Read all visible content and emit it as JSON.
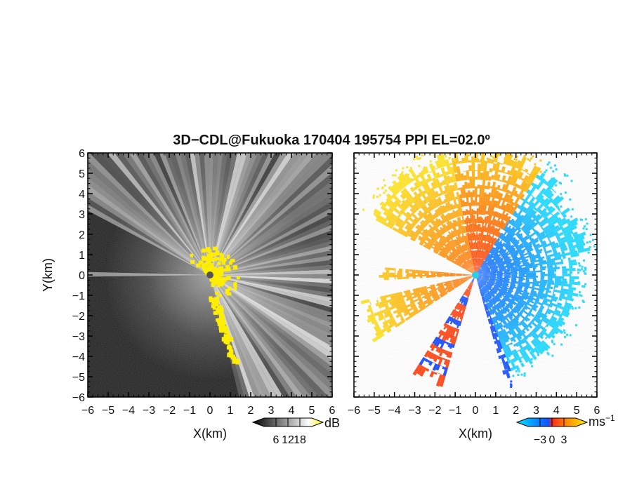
{
  "title": "3D−CDL@Fukuoka 170404 195754 PPI EL=02.0º",
  "chart_data": [
    {
      "name": "reflectivity",
      "type": "heatmap",
      "xlabel": "X(km)",
      "ylabel": "Y(km)",
      "xlim": [
        -6,
        6
      ],
      "ylim": [
        -6,
        6
      ],
      "xticks": [
        "−6",
        "−5",
        "−4",
        "−3",
        "−2",
        "−1",
        "0",
        "1",
        "2",
        "3",
        "4",
        "5",
        "6"
      ],
      "yticks": [
        "−6",
        "−5",
        "−4",
        "−3",
        "−2",
        "−1",
        "0",
        "1",
        "2",
        "3",
        "4",
        "5",
        "6"
      ],
      "colorbar": {
        "unit": "dB",
        "ticks": [
          "6",
          "12",
          "18"
        ],
        "tick_values": [
          6,
          12,
          18
        ],
        "range": [
          0,
          24
        ],
        "colors": [
          "#000000",
          "#ffffff",
          "#ffee00"
        ]
      },
      "highlight_color": "#ffee00",
      "background_color": "#1e1e1e"
    },
    {
      "name": "doppler-velocity",
      "type": "heatmap",
      "xlabel": "X(km)",
      "ylabel": "",
      "xlim": [
        -6,
        6
      ],
      "ylim": [
        -6,
        6
      ],
      "xticks": [
        "−6",
        "−5",
        "−4",
        "−3",
        "−2",
        "−1",
        "0",
        "1",
        "2",
        "3",
        "4",
        "5",
        "6"
      ],
      "yticks": [
        "−6",
        "−5",
        "−4",
        "−3",
        "−2",
        "−1",
        "0",
        "1",
        "2",
        "3",
        "4",
        "5",
        "6"
      ],
      "colorbar": {
        "unit": "ms",
        "unit_sup": "−1",
        "ticks": [
          "−3",
          "0",
          "3"
        ],
        "tick_values": [
          -3,
          0,
          3
        ],
        "range": [
          -6,
          6
        ],
        "colors": [
          "#00e5ff",
          "#1050ff",
          "#ff2a1a",
          "#ff9a00",
          "#ffee00"
        ]
      },
      "negative_color": "#1a7cff",
      "positive_color": "#ff8a10"
    }
  ]
}
